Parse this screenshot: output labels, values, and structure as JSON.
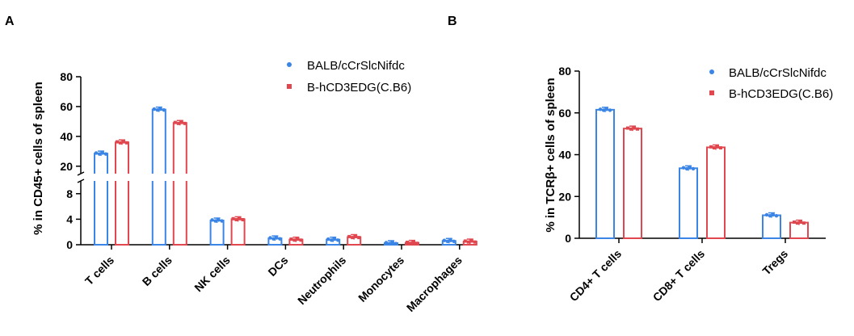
{
  "colors": {
    "series1": "#3a85e6",
    "series2": "#e0474f",
    "axis": "#000000"
  },
  "chart_data": [
    {
      "panel": "A",
      "type": "bar",
      "ylabel": "% in CD45+ cells of spleen",
      "y_axis_break": {
        "lower": [
          0,
          10
        ],
        "upper": [
          15,
          80
        ]
      },
      "y_ticks": [
        0,
        4,
        8,
        20,
        40,
        60,
        80
      ],
      "legend_position": "top-right",
      "categories": [
        "T cells",
        "B cells",
        "NK cells",
        "DCs",
        "Neutrophils",
        "Monocytes",
        "Macrophages"
      ],
      "series": [
        {
          "name": "BALB/cCrSlcNifdc",
          "values": [
            28.5,
            58,
            3.8,
            1.0,
            0.8,
            0.25,
            0.6
          ]
        },
        {
          "name": "B-hCD3EDG(C.B6)",
          "values": [
            36,
            49,
            4.0,
            0.8,
            1.2,
            0.3,
            0.5
          ]
        }
      ]
    },
    {
      "panel": "B",
      "type": "bar",
      "ylabel": "% in TCRβ+ cells of spleen",
      "ylim": [
        0,
        80
      ],
      "y_ticks": [
        0,
        20,
        40,
        60,
        80
      ],
      "legend_position": "top-right",
      "categories": [
        "CD4+ T cells",
        "CD8+ T cells",
        "Tregs"
      ],
      "series": [
        {
          "name": "BALB/cCrSlcNifdc",
          "values": [
            61.5,
            33.5,
            11
          ]
        },
        {
          "name": "B-hCD3EDG(C.B6)",
          "values": [
            52.5,
            43.5,
            7.5
          ]
        }
      ]
    }
  ]
}
